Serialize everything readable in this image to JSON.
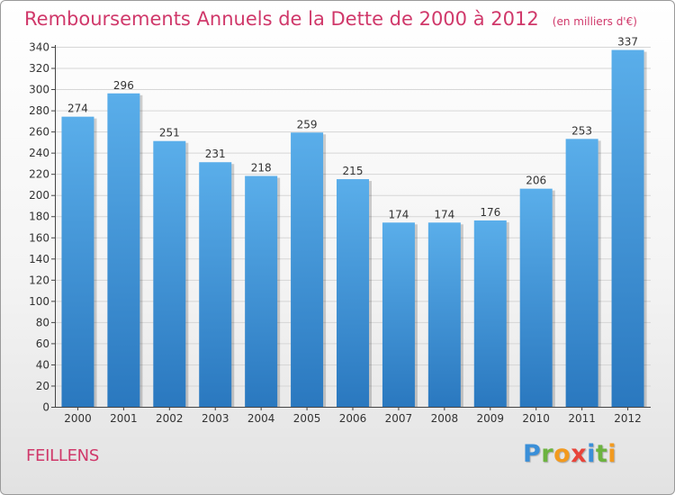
{
  "chart_data": {
    "type": "bar",
    "title": "Remboursements Annuels de la Dette de 2000 à 2012",
    "subtitle": "(en milliers d'€)",
    "categories": [
      "2000",
      "2001",
      "2002",
      "2003",
      "2004",
      "2005",
      "2006",
      "2007",
      "2008",
      "2009",
      "2010",
      "2011",
      "2012"
    ],
    "values": [
      274,
      296,
      251,
      231,
      218,
      259,
      215,
      174,
      174,
      176,
      206,
      253,
      337
    ],
    "ylim": [
      0,
      340
    ],
    "yticks": [
      0,
      20,
      40,
      60,
      80,
      100,
      120,
      140,
      160,
      180,
      200,
      220,
      240,
      260,
      280,
      300,
      320,
      340
    ],
    "grid": true,
    "bar_color": "#4a9de0"
  },
  "commune": "FEILLENS",
  "logo": {
    "letters": [
      {
        "char": "P",
        "color": "#3a8fd8"
      },
      {
        "char": "r",
        "color": "#6cb33f"
      },
      {
        "char": "o",
        "color": "#f29a1f"
      },
      {
        "char": "x",
        "color": "#e8443a"
      },
      {
        "char": "i",
        "color": "#3a8fd8"
      },
      {
        "char": "t",
        "color": "#6cb33f"
      },
      {
        "char": "i",
        "color": "#f29a1f"
      }
    ]
  }
}
